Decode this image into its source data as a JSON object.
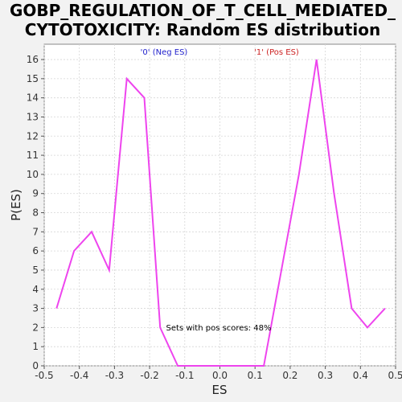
{
  "chart_data": {
    "type": "line",
    "title_lines": [
      "GOBP_REGULATION_OF_T_CELL_MEDIATED_",
      "CYTOTOXICITY: Random ES distribution"
    ],
    "xlabel": "ES",
    "ylabel": "P(ES)",
    "xlim": [
      -0.5,
      0.5
    ],
    "ylim": [
      0,
      16.8
    ],
    "xticks": [
      -0.5,
      -0.4,
      -0.3,
      -0.2,
      -0.1,
      0.0,
      0.1,
      0.2,
      0.3,
      0.4,
      0.5
    ],
    "xtick_labels": [
      "-0.5",
      "-0.4",
      "-0.3",
      "-0.2",
      "-0.1",
      "0.0",
      "0.1",
      "0.2",
      "0.3",
      "0.4",
      "0.5"
    ],
    "yticks": [
      0,
      1,
      2,
      3,
      4,
      5,
      6,
      7,
      8,
      9,
      10,
      11,
      12,
      13,
      14,
      15,
      16
    ],
    "grid": true,
    "legend": [
      {
        "label": "'0' (Neg ES)",
        "color": "#2222cc"
      },
      {
        "label": "'1' (Pos ES)",
        "color": "#cc2222"
      }
    ],
    "annotation": "Sets with pos scores: 48%",
    "series": [
      {
        "color": "#ee44ee",
        "x": [
          -0.465,
          -0.415,
          -0.365,
          -0.315,
          -0.265,
          -0.215,
          -0.17,
          -0.12,
          -0.07,
          -0.02,
          0.025,
          0.075,
          0.125,
          0.175,
          0.225,
          0.275,
          0.325,
          0.375,
          0.42,
          0.47
        ],
        "y": [
          3,
          6,
          7,
          5,
          15,
          14,
          2,
          0,
          0,
          0,
          0,
          0,
          0,
          5,
          10,
          16,
          9,
          3,
          2,
          3
        ]
      }
    ]
  }
}
